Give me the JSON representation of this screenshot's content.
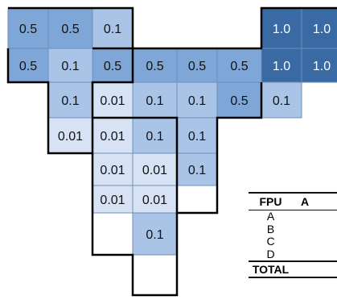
{
  "colors": {
    "level_1_0": "#3a6aa3",
    "level_0_5": "#7ea6d7",
    "level_0_1": "#a9c4e6",
    "level_0_01": "#d7e3f4",
    "cell_line": "#6f8fb8",
    "boundary": "#000000",
    "text_dark": "#111111",
    "text_light": "#ffffff"
  },
  "cells": [
    {
      "r": 0,
      "c": 0,
      "v": "0.5"
    },
    {
      "r": 0,
      "c": 1,
      "v": "0.5"
    },
    {
      "r": 0,
      "c": 2,
      "v": "0.1"
    },
    {
      "r": 0,
      "c": 6,
      "v": "1.0"
    },
    {
      "r": 0,
      "c": 7,
      "v": "1.0"
    },
    {
      "r": 1,
      "c": 0,
      "v": "0.5"
    },
    {
      "r": 1,
      "c": 1,
      "v": "0.1"
    },
    {
      "r": 1,
      "c": 2,
      "v": "0.5"
    },
    {
      "r": 1,
      "c": 3,
      "v": "0.5"
    },
    {
      "r": 1,
      "c": 4,
      "v": "0.5"
    },
    {
      "r": 1,
      "c": 5,
      "v": "0.5"
    },
    {
      "r": 1,
      "c": 6,
      "v": "1.0"
    },
    {
      "r": 1,
      "c": 7,
      "v": "1.0"
    },
    {
      "r": 2,
      "c": 1,
      "v": "0.1"
    },
    {
      "r": 2,
      "c": 2,
      "v": "0.01"
    },
    {
      "r": 2,
      "c": 3,
      "v": "0.1"
    },
    {
      "r": 2,
      "c": 4,
      "v": "0.1"
    },
    {
      "r": 2,
      "c": 5,
      "v": "0.5"
    },
    {
      "r": 2,
      "c": 6,
      "v": "0.1"
    },
    {
      "r": 3,
      "c": 1,
      "v": "0.01"
    },
    {
      "r": 3,
      "c": 2,
      "v": "0.01"
    },
    {
      "r": 3,
      "c": 3,
      "v": "0.1"
    },
    {
      "r": 3,
      "c": 4,
      "v": "0.1"
    },
    {
      "r": 4,
      "c": 2,
      "v": "0.01"
    },
    {
      "r": 4,
      "c": 3,
      "v": "0.01"
    },
    {
      "r": 4,
      "c": 4,
      "v": "0.1"
    },
    {
      "r": 5,
      "c": 2,
      "v": "0.01"
    },
    {
      "r": 5,
      "c": 3,
      "v": "0.01"
    },
    {
      "r": 6,
      "c": 3,
      "v": "0.1"
    }
  ],
  "table": {
    "header_fpu": "FPU",
    "header_a": "A",
    "rows": [
      "A",
      "B",
      "C",
      "D"
    ],
    "total_label": "TOTAL"
  }
}
